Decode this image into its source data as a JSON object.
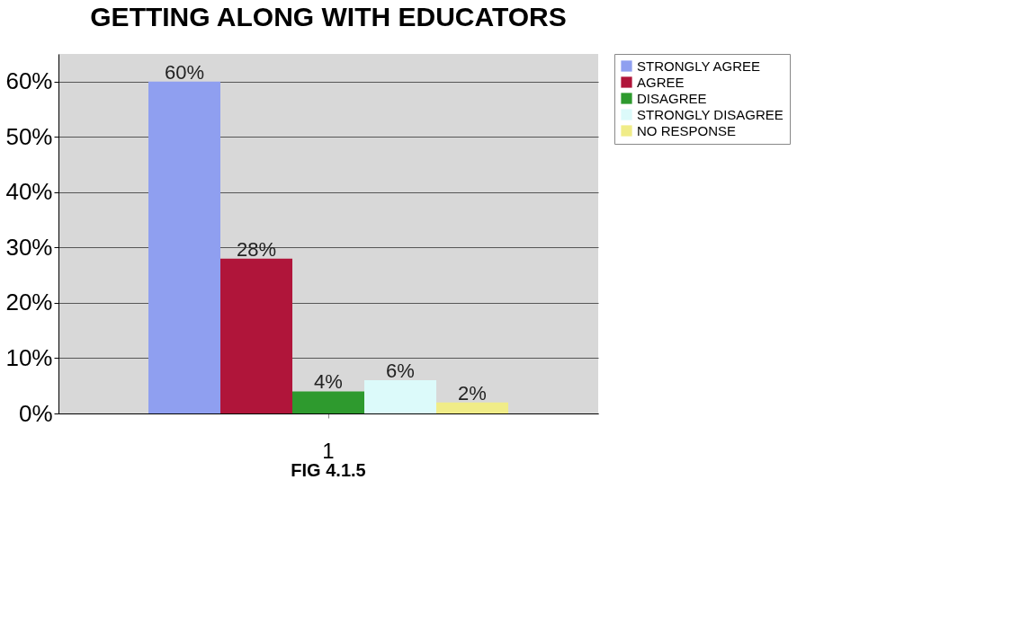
{
  "chart_data": {
    "type": "bar",
    "title": "GETTING ALONG WITH EDUCATORS",
    "categories": [
      "1"
    ],
    "series": [
      {
        "name": "STRONGLY AGREE",
        "color": "#8f9ff0",
        "values": [
          60
        ],
        "value_labels": [
          "60%"
        ]
      },
      {
        "name": "AGREE",
        "color": "#b0153a",
        "values": [
          28
        ],
        "value_labels": [
          "28%"
        ]
      },
      {
        "name": "DISAGREE",
        "color": "#2e9a2e",
        "values": [
          4
        ],
        "value_labels": [
          "4%"
        ]
      },
      {
        "name": "STRONGLY DISAGREE",
        "color": "#dcfafa",
        "values": [
          6
        ],
        "value_labels": [
          "6%"
        ]
      },
      {
        "name": "NO RESPONSE",
        "color": "#f0ec88",
        "values": [
          2
        ],
        "value_labels": [
          "2%"
        ]
      }
    ],
    "ylim": [
      0,
      65
    ],
    "yticks": [
      {
        "value": 0,
        "label": "0%"
      },
      {
        "value": 10,
        "label": "10%"
      },
      {
        "value": 20,
        "label": "20%"
      },
      {
        "value": 30,
        "label": "30%"
      },
      {
        "value": 40,
        "label": "40%"
      },
      {
        "value": 50,
        "label": "50%"
      },
      {
        "value": 60,
        "label": "60%"
      }
    ],
    "grid": "y",
    "legend": "right",
    "annotations": [
      "FIG 4.1.5"
    ]
  }
}
